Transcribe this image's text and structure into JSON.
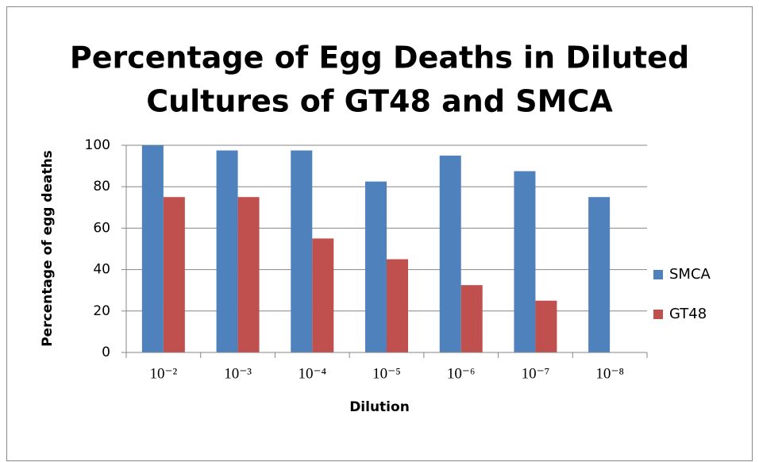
{
  "chart_data": {
    "type": "bar",
    "title": "Percentage of Egg Deaths in Diluted Cultures of GT48 and SMCA",
    "x_label": "Dilution",
    "y_label": "Percentage of egg deaths",
    "categories": [
      "10⁻²",
      "10⁻³",
      "10⁻⁴",
      "10⁻⁵",
      "10⁻⁶",
      "10⁻⁷",
      "10⁻⁸"
    ],
    "series": [
      {
        "name": "SMCA",
        "color": "#4f81bd",
        "values": [
          100,
          97.5,
          97.5,
          82.5,
          95,
          87.5,
          75
        ]
      },
      {
        "name": "GT48",
        "color": "#c0504d",
        "values": [
          75,
          75,
          55,
          45,
          32.5,
          25,
          null
        ]
      }
    ],
    "ylim": [
      0,
      100
    ],
    "yticks": [
      0,
      20,
      40,
      60,
      80,
      100
    ],
    "grid": true,
    "legend": "right"
  }
}
